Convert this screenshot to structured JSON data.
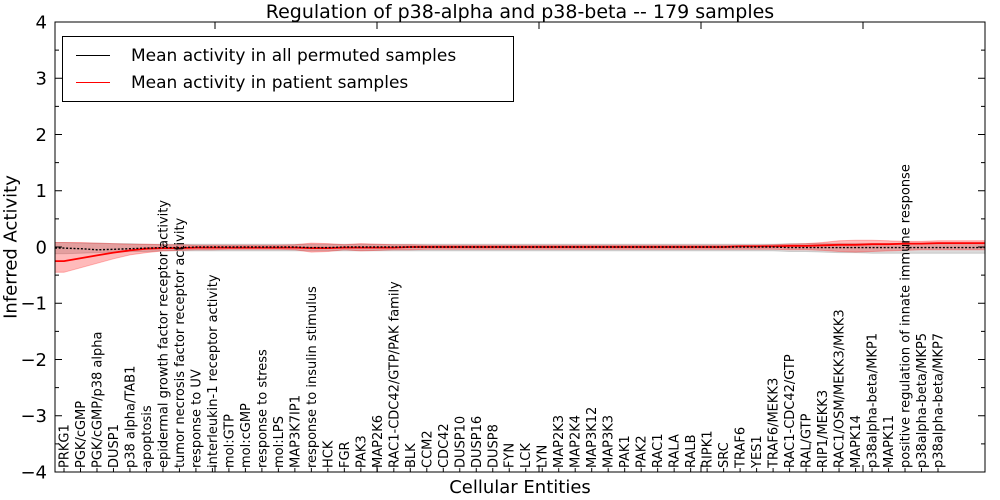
{
  "chart_data": {
    "type": "line",
    "title": "Regulation of p38-alpha and p38-beta -- 179 samples",
    "xlabel": "Cellular Entities",
    "ylabel": "Inferred Activity",
    "ylim": [
      -4,
      4
    ],
    "yticks": [
      4,
      3,
      2,
      1,
      0,
      -1,
      -2,
      -3,
      -4
    ],
    "grid": false,
    "legend_position": "upper-left",
    "background": "#ffffff",
    "categories": [
      "PRKG1",
      "PGK/cGMP",
      "PGK/cGMP/p38 alpha",
      "DUSP1",
      "p38 alpha/TAB1",
      "apoptosis",
      "epidermal growth factor receptor activity",
      "tumor necrosis factor receptor activity",
      "response to UV",
      "interleukin-1 receptor activity",
      "mol:GTP",
      "mol:cGMP",
      "response to stress",
      "mol:LPS",
      "MAP3K7IP1",
      "response to insulin stimulus",
      "HCK",
      "FGR",
      "PAK3",
      "MAP2K6",
      "RAC1-CDC42/GTP/PAK family",
      "BLK",
      "CCM2",
      "CDC42",
      "DUSP10",
      "DUSP16",
      "DUSP8",
      "FYN",
      "LCK",
      "LYN",
      "MAP2K3",
      "MAP2K4",
      "MAP3K12",
      "MAP3K3",
      "PAK1",
      "PAK2",
      "RAC1",
      "RALA",
      "RALB",
      "RIPK1",
      "SRC",
      "TRAF6",
      "YES1",
      "TRAF6/MEKK3",
      "RAC1-CDC42/GTP",
      "RAL/GTP",
      "RIP1/MEKK3",
      "RAC1/OSM/MEKK3/MKK3",
      "MAPK14",
      "p38alpha-beta/MKP1",
      "MAPK11",
      "positive regulation of innate immune response",
      "p38alpha-beta/MKP5",
      "p38alpha-beta/MKP7"
    ],
    "series": [
      {
        "name": "Mean activity in all permuted samples",
        "color": "#000000",
        "band_color": "rgba(0,0,0,0.14)",
        "values": [
          -0.02,
          -0.03,
          -0.05,
          -0.04,
          -0.03,
          -0.02,
          -0.01,
          -0.01,
          0,
          0,
          0,
          0,
          0,
          0,
          0,
          -0.01,
          -0.01,
          0,
          0,
          0,
          0,
          0,
          0,
          0,
          0,
          0,
          0,
          0,
          0,
          0,
          0,
          0,
          0,
          0,
          0,
          0,
          0,
          0,
          0,
          0,
          0,
          0,
          0,
          0,
          -0.01,
          -0.01,
          -0.01,
          -0.01,
          -0.01,
          -0.01,
          -0.01,
          -0.01,
          -0.01,
          -0.01
        ],
        "band_lower": [
          -0.12,
          -0.11,
          -0.1,
          -0.09,
          -0.08,
          -0.08,
          -0.07,
          -0.07,
          -0.07,
          -0.07,
          -0.07,
          -0.07,
          -0.07,
          -0.07,
          -0.07,
          -0.07,
          -0.07,
          -0.07,
          -0.07,
          -0.07,
          -0.07,
          -0.07,
          -0.07,
          -0.07,
          -0.07,
          -0.07,
          -0.07,
          -0.07,
          -0.07,
          -0.07,
          -0.07,
          -0.07,
          -0.07,
          -0.07,
          -0.07,
          -0.07,
          -0.07,
          -0.07,
          -0.07,
          -0.07,
          -0.07,
          -0.07,
          -0.07,
          -0.07,
          -0.08,
          -0.08,
          -0.09,
          -0.1,
          -0.1,
          -0.11,
          -0.11,
          -0.11,
          -0.11,
          -0.11
        ],
        "band_upper": [
          0.08,
          0.07,
          0.07,
          0.06,
          0.06,
          0.05,
          0.05,
          0.05,
          0.05,
          0.05,
          0.05,
          0.05,
          0.05,
          0.05,
          0.05,
          0.05,
          0.05,
          0.05,
          0.05,
          0.05,
          0.05,
          0.05,
          0.05,
          0.05,
          0.05,
          0.05,
          0.05,
          0.05,
          0.05,
          0.05,
          0.05,
          0.05,
          0.05,
          0.05,
          0.05,
          0.05,
          0.05,
          0.05,
          0.05,
          0.05,
          0.05,
          0.05,
          0.05,
          0.05,
          0.06,
          0.06,
          0.06,
          0.06,
          0.06,
          0.06,
          0.06,
          0.06,
          0.06,
          0.06
        ]
      },
      {
        "name": "Mean activity in patient samples",
        "color": "#ff0000",
        "band_color": "rgba(255,0,0,0.27)",
        "values": [
          -0.25,
          -0.2,
          -0.15,
          -0.1,
          -0.06,
          -0.03,
          -0.02,
          -0.02,
          -0.01,
          -0.01,
          -0.01,
          -0.01,
          -0.01,
          -0.01,
          -0.01,
          -0.02,
          -0.02,
          -0.01,
          -0.01,
          -0.01,
          -0.01,
          0,
          0,
          0,
          0,
          0,
          0,
          0,
          0,
          0,
          0,
          0,
          0,
          0,
          0,
          0,
          0,
          0,
          0,
          0,
          0,
          0.01,
          0.01,
          0.01,
          0.02,
          0.02,
          0.03,
          0.04,
          0.04,
          0.05,
          0.05,
          0.06,
          0.06,
          0.07
        ],
        "band_lower": [
          -0.45,
          -0.37,
          -0.29,
          -0.21,
          -0.14,
          -0.1,
          -0.07,
          -0.06,
          -0.05,
          -0.05,
          -0.04,
          -0.04,
          -0.04,
          -0.04,
          -0.05,
          -0.09,
          -0.08,
          -0.05,
          -0.07,
          -0.06,
          -0.05,
          -0.05,
          -0.04,
          -0.04,
          -0.04,
          -0.04,
          -0.04,
          -0.04,
          -0.04,
          -0.04,
          -0.04,
          -0.04,
          -0.04,
          -0.04,
          -0.04,
          -0.04,
          -0.04,
          -0.04,
          -0.04,
          -0.04,
          -0.04,
          -0.04,
          -0.04,
          -0.04,
          -0.05,
          -0.05,
          -0.06,
          -0.08,
          -0.09,
          -0.08,
          -0.07,
          -0.06,
          -0.05,
          -0.05
        ],
        "band_upper": [
          0.08,
          0.08,
          0.07,
          0.06,
          0.05,
          0.05,
          0.04,
          0.04,
          0.03,
          0.03,
          0.03,
          0.03,
          0.03,
          0.03,
          0.04,
          0.07,
          0.06,
          0.04,
          0.06,
          0.05,
          0.04,
          0.04,
          0.03,
          0.03,
          0.03,
          0.03,
          0.03,
          0.03,
          0.03,
          0.03,
          0.03,
          0.03,
          0.03,
          0.03,
          0.03,
          0.03,
          0.03,
          0.03,
          0.03,
          0.03,
          0.03,
          0.03,
          0.03,
          0.04,
          0.05,
          0.06,
          0.08,
          0.11,
          0.12,
          0.12,
          0.11,
          0.1,
          0.1,
          0.11
        ]
      }
    ]
  }
}
